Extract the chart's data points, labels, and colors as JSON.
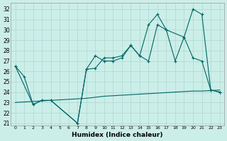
{
  "xlabel": "Humidex (Indice chaleur)",
  "bg_color": "#cceee8",
  "grid_color": "#aad8d0",
  "line_color": "#006666",
  "xlim": [
    -0.5,
    23.5
  ],
  "ylim": [
    20.8,
    32.6
  ],
  "yticks": [
    21,
    22,
    23,
    24,
    25,
    26,
    27,
    28,
    29,
    30,
    31,
    32
  ],
  "xticks": [
    0,
    1,
    2,
    3,
    4,
    5,
    6,
    7,
    8,
    9,
    10,
    11,
    12,
    13,
    14,
    15,
    16,
    17,
    18,
    19,
    20,
    21,
    22,
    23
  ],
  "line1_x": [
    0,
    2,
    3,
    4,
    7,
    8,
    9,
    10,
    11,
    12,
    13,
    14,
    15,
    16,
    17,
    19,
    20,
    21,
    22,
    23
  ],
  "line1_y": [
    26.5,
    22.8,
    23.2,
    23.2,
    21.0,
    26.2,
    26.3,
    27.3,
    27.3,
    27.5,
    28.5,
    27.5,
    30.5,
    31.5,
    30.0,
    29.3,
    32.0,
    31.5,
    24.2,
    24.0
  ],
  "line2_x": [
    0,
    1,
    2,
    3,
    4,
    7,
    8,
    9,
    10,
    11,
    12,
    13,
    14,
    15,
    16,
    17,
    18,
    19,
    20,
    21,
    22,
    23
  ],
  "line2_y": [
    26.5,
    25.5,
    22.8,
    23.2,
    23.2,
    21.0,
    26.2,
    27.5,
    27.0,
    27.0,
    27.3,
    28.5,
    27.5,
    27.0,
    30.5,
    30.0,
    27.0,
    29.3,
    27.3,
    27.0,
    24.2,
    24.0
  ],
  "line3_x": [
    0,
    1,
    2,
    3,
    4,
    5,
    6,
    7,
    8,
    9,
    10,
    11,
    12,
    13,
    14,
    15,
    16,
    17,
    18,
    19,
    20,
    21,
    22,
    23
  ],
  "line3_y": [
    23.0,
    23.05,
    23.1,
    23.15,
    23.2,
    23.25,
    23.3,
    23.35,
    23.4,
    23.5,
    23.6,
    23.65,
    23.7,
    23.75,
    23.8,
    23.85,
    23.9,
    23.95,
    24.0,
    24.05,
    24.1,
    24.1,
    24.15,
    24.2
  ]
}
